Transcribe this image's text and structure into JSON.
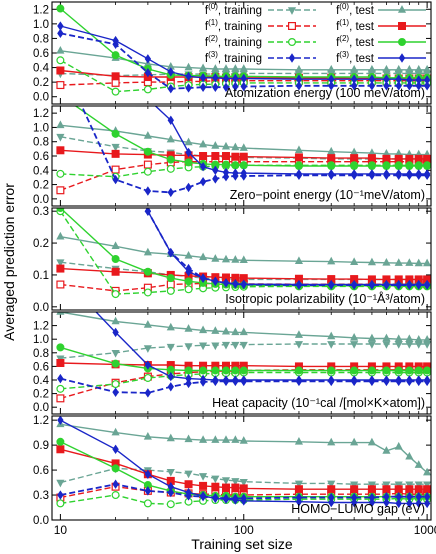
{
  "chart_data": {
    "type": "line",
    "xscale": "log",
    "xlim": [
      9,
      1050
    ],
    "x_ticks": [
      10,
      100,
      1000
    ],
    "x_tick_labels": [
      "10",
      "100",
      "1000"
    ],
    "xlabel": "Training set size",
    "ylabel": "Averaged prediction error",
    "x": [
      10,
      20,
      30,
      40,
      50,
      60,
      70,
      80,
      90,
      100,
      200,
      300,
      400,
      500,
      600,
      700,
      800,
      900,
      1000
    ],
    "series_styles": [
      {
        "name": "f(0), training",
        "name_base": "f",
        "name_sup": "(0)",
        "name_suffix": ", training",
        "color": "#6aa595",
        "dash": "6,3",
        "marker": "triangle-down"
      },
      {
        "name": "f(1), training",
        "name_base": "f",
        "name_sup": "(1)",
        "name_suffix": ", training",
        "color": "#e8191d",
        "dash": "6,3",
        "marker": "square-open"
      },
      {
        "name": "f(2), training",
        "name_base": "f",
        "name_sup": "(2)",
        "name_suffix": ", training",
        "color": "#2fd22f",
        "dash": "6,3",
        "marker": "circle-open"
      },
      {
        "name": "f(3), training",
        "name_base": "f",
        "name_sup": "(3)",
        "name_suffix": ", training",
        "color": "#1a26c8",
        "dash": "6,3",
        "marker": "diamond"
      },
      {
        "name": "f(0), test",
        "name_base": "f",
        "name_sup": "(0)",
        "name_suffix": ", test",
        "color": "#6aa595",
        "dash": "",
        "marker": "triangle-up"
      },
      {
        "name": "f(1), test",
        "name_base": "f",
        "name_sup": "(1)",
        "name_suffix": ", test",
        "color": "#e8191d",
        "dash": "",
        "marker": "square"
      },
      {
        "name": "f(2), test",
        "name_base": "f",
        "name_sup": "(2)",
        "name_suffix": ", test",
        "color": "#2fd22f",
        "dash": "",
        "marker": "circle"
      },
      {
        "name": "f(3), test",
        "name_base": "f",
        "name_sup": "(3)",
        "name_suffix": ", test",
        "color": "#1a26c8",
        "dash": "",
        "marker": "diamond"
      }
    ],
    "panels": [
      {
        "label": "Atomization energy (100 meV/atom)",
        "ylim": [
          -0.1,
          1.3
        ],
        "y_ticks": [
          0.0,
          0.2,
          0.4,
          0.6,
          0.8,
          1.0,
          1.2
        ],
        "y_tick_labels": [
          "0.0",
          "0.2",
          "0.4",
          "0.6",
          "0.8",
          "1.0",
          "1.2"
        ],
        "series": [
          [
            0.32,
            0.29,
            0.3,
            0.31,
            0.31,
            0.31,
            0.31,
            0.31,
            0.32,
            0.32,
            0.32,
            0.32,
            0.32,
            0.32,
            0.32,
            0.32,
            0.32,
            0.32,
            0.32
          ],
          [
            0.16,
            0.19,
            0.2,
            0.2,
            0.21,
            0.21,
            0.22,
            0.22,
            0.22,
            0.22,
            0.22,
            0.22,
            0.22,
            0.22,
            0.22,
            0.22,
            0.22,
            0.22,
            0.22
          ],
          [
            0.5,
            0.07,
            0.1,
            0.14,
            0.16,
            0.17,
            0.17,
            0.18,
            0.18,
            0.19,
            0.19,
            0.19,
            0.19,
            0.19,
            0.19,
            0.19,
            0.19,
            0.19,
            0.19
          ],
          [
            0.87,
            0.72,
            0.33,
            0.11,
            0.12,
            0.13,
            0.13,
            0.13,
            0.14,
            0.14,
            0.15,
            0.15,
            0.15,
            0.15,
            0.15,
            0.15,
            0.15,
            0.15,
            0.15
          ],
          [
            0.63,
            0.53,
            0.45,
            0.41,
            0.4,
            0.39,
            0.38,
            0.38,
            0.38,
            0.38,
            0.37,
            0.37,
            0.37,
            0.37,
            0.37,
            0.37,
            0.37,
            0.37,
            0.37
          ],
          [
            0.36,
            0.28,
            0.27,
            0.27,
            0.27,
            0.27,
            0.27,
            0.26,
            0.26,
            0.26,
            0.26,
            0.26,
            0.25,
            0.25,
            0.25,
            0.25,
            0.25,
            0.25,
            0.25
          ],
          [
            1.21,
            0.57,
            0.38,
            0.3,
            0.29,
            0.29,
            0.28,
            0.28,
            0.28,
            0.28,
            0.27,
            0.27,
            0.27,
            0.27,
            0.26,
            0.26,
            0.26,
            0.26,
            0.26
          ],
          [
            0.97,
            0.77,
            0.52,
            0.34,
            0.28,
            0.26,
            0.26,
            0.25,
            0.25,
            0.25,
            0.24,
            0.24,
            0.24,
            0.24,
            0.24,
            0.24,
            0.23,
            0.23,
            0.23
          ]
        ]
      },
      {
        "label": "Zero−point energy (10⁻¹meV/atom)",
        "ylim": [
          -0.1,
          1.3
        ],
        "y_ticks": [
          0.0,
          0.2,
          0.4,
          0.6,
          0.8,
          1.0,
          1.2
        ],
        "y_tick_labels": [
          "0.0",
          "0.2",
          "0.4",
          "0.6",
          "0.8",
          "1.0",
          "1.2"
        ],
        "series": [
          [
            0.87,
            0.73,
            0.67,
            0.65,
            0.62,
            0.6,
            0.59,
            0.59,
            0.58,
            0.58,
            0.57,
            0.56,
            0.56,
            0.56,
            0.56,
            0.56,
            0.56,
            0.56,
            0.56
          ],
          [
            0.12,
            0.41,
            0.48,
            0.51,
            0.52,
            0.52,
            0.52,
            0.52,
            0.52,
            0.52,
            0.52,
            0.52,
            0.52,
            0.52,
            0.52,
            0.52,
            0.52,
            0.52,
            0.52
          ],
          [
            0.35,
            0.31,
            0.38,
            0.42,
            0.44,
            0.45,
            0.46,
            0.46,
            0.47,
            0.47,
            0.47,
            0.47,
            0.47,
            0.47,
            0.47,
            0.47,
            0.47,
            0.47,
            0.47
          ],
          [
            1.95,
            0.27,
            0.11,
            0.09,
            0.16,
            0.24,
            0.28,
            0.31,
            0.32,
            0.32,
            0.33,
            0.33,
            0.33,
            0.33,
            0.33,
            0.33,
            0.33,
            0.33,
            0.33
          ],
          [
            1.03,
            0.95,
            0.88,
            0.83,
            0.79,
            0.76,
            0.74,
            0.73,
            0.72,
            0.71,
            0.68,
            0.66,
            0.65,
            0.64,
            0.63,
            0.63,
            0.62,
            0.62,
            0.62
          ],
          [
            0.68,
            0.63,
            0.62,
            0.61,
            0.61,
            0.6,
            0.6,
            0.6,
            0.59,
            0.59,
            0.58,
            0.57,
            0.57,
            0.57,
            0.56,
            0.56,
            0.56,
            0.56,
            0.56
          ],
          [
            1.45,
            0.91,
            0.66,
            0.55,
            0.51,
            0.49,
            0.48,
            0.48,
            0.47,
            0.47,
            0.46,
            0.46,
            0.46,
            0.46,
            0.46,
            0.46,
            0.46,
            0.46,
            0.46
          ],
          [
            2.6,
            1.8,
            1.4,
            1.1,
            0.65,
            0.45,
            0.4,
            0.37,
            0.36,
            0.36,
            0.35,
            0.35,
            0.35,
            0.35,
            0.35,
            0.35,
            0.35,
            0.35,
            0.35
          ]
        ]
      },
      {
        "label": "Isotropic polarizability (10⁻¹Å³/atom)",
        "ylim": [
          -0.01,
          0.31
        ],
        "y_ticks": [
          0.0,
          0.1,
          0.2,
          0.3
        ],
        "y_tick_labels": [
          "0.0",
          "0.1",
          "0.2",
          "0.3"
        ],
        "series": [
          [
            0.14,
            0.12,
            0.11,
            0.1,
            0.095,
            0.09,
            0.088,
            0.087,
            0.086,
            0.086,
            0.086,
            0.086,
            0.086,
            0.086,
            0.086,
            0.086,
            0.086,
            0.086,
            0.086
          ],
          [
            0.07,
            0.05,
            0.06,
            0.07,
            0.072,
            0.073,
            0.073,
            0.073,
            0.072,
            0.072,
            0.071,
            0.071,
            0.071,
            0.071,
            0.071,
            0.071,
            0.071,
            0.071,
            0.071
          ],
          [
            0.3,
            0.04,
            0.045,
            0.05,
            0.055,
            0.058,
            0.06,
            0.061,
            0.062,
            0.063,
            0.064,
            0.064,
            0.064,
            0.064,
            0.064,
            0.064,
            0.064,
            0.064,
            0.064
          ],
          [
            0.8,
            0.5,
            0.3,
            0.17,
            0.12,
            0.09,
            0.08,
            0.075,
            0.072,
            0.07,
            0.068,
            0.068,
            0.068,
            0.068,
            0.068,
            0.068,
            0.068,
            0.068,
            0.068
          ],
          [
            0.22,
            0.19,
            0.17,
            0.165,
            0.16,
            0.155,
            0.15,
            0.148,
            0.147,
            0.146,
            0.143,
            0.142,
            0.14,
            0.139,
            0.138,
            0.137,
            0.137,
            0.136,
            0.136
          ],
          [
            0.12,
            0.11,
            0.105,
            0.1,
            0.097,
            0.095,
            0.093,
            0.092,
            0.091,
            0.09,
            0.088,
            0.087,
            0.087,
            0.086,
            0.086,
            0.086,
            0.086,
            0.086,
            0.086
          ],
          [
            0.31,
            0.15,
            0.11,
            0.09,
            0.08,
            0.075,
            0.072,
            0.07,
            0.069,
            0.068,
            0.066,
            0.066,
            0.066,
            0.066,
            0.066,
            0.066,
            0.066,
            0.066,
            0.066
          ],
          [
            1.1,
            0.6,
            0.3,
            0.17,
            0.11,
            0.09,
            0.08,
            0.075,
            0.072,
            0.071,
            0.07,
            0.07,
            0.07,
            0.07,
            0.07,
            0.07,
            0.07,
            0.07,
            0.07
          ]
        ]
      },
      {
        "label": "Heat capacity (10⁻¹cal /[mol×K×atom])",
        "ylim": [
          -0.1,
          1.4
        ],
        "y_ticks": [
          0.0,
          0.2,
          0.4,
          0.6,
          0.8,
          1.0,
          1.2
        ],
        "y_tick_labels": [
          "0.0",
          "0.2",
          "0.4",
          "0.6",
          "0.8",
          "1.0",
          "1.2"
        ],
        "series": [
          [
            0.72,
            0.8,
            0.87,
            0.89,
            0.9,
            0.91,
            0.91,
            0.92,
            0.92,
            0.92,
            0.93,
            0.93,
            0.93,
            0.93,
            0.93,
            0.93,
            0.93,
            0.93,
            0.93
          ],
          [
            0.13,
            0.36,
            0.45,
            0.49,
            0.51,
            0.52,
            0.53,
            0.53,
            0.53,
            0.54,
            0.55,
            0.55,
            0.55,
            0.55,
            0.55,
            0.55,
            0.55,
            0.55,
            0.55
          ],
          [
            0.27,
            0.34,
            0.43,
            0.46,
            0.48,
            0.49,
            0.5,
            0.5,
            0.5,
            0.51,
            0.51,
            0.51,
            0.51,
            0.51,
            0.51,
            0.51,
            0.51,
            0.51,
            0.51
          ],
          [
            0.42,
            0.22,
            0.21,
            0.3,
            0.35,
            0.37,
            0.38,
            0.38,
            0.38,
            0.38,
            0.38,
            0.38,
            0.38,
            0.38,
            0.38,
            0.38,
            0.38,
            0.38,
            0.38
          ],
          [
            1.4,
            1.26,
            1.21,
            1.17,
            1.15,
            1.13,
            1.12,
            1.11,
            1.1,
            1.1,
            1.06,
            1.04,
            1.02,
            1.01,
            1.01,
            1.0,
            1.0,
            0.99,
            0.99
          ],
          [
            0.65,
            0.63,
            0.62,
            0.62,
            0.61,
            0.61,
            0.61,
            0.61,
            0.61,
            0.61,
            0.6,
            0.6,
            0.6,
            0.6,
            0.6,
            0.6,
            0.6,
            0.6,
            0.6
          ],
          [
            0.88,
            0.64,
            0.57,
            0.55,
            0.54,
            0.54,
            0.54,
            0.54,
            0.54,
            0.54,
            0.54,
            0.54,
            0.54,
            0.54,
            0.54,
            0.54,
            0.54,
            0.54,
            0.54
          ],
          [
            1.95,
            1.1,
            0.62,
            0.45,
            0.42,
            0.41,
            0.4,
            0.4,
            0.4,
            0.4,
            0.4,
            0.4,
            0.4,
            0.4,
            0.4,
            0.4,
            0.4,
            0.4,
            0.4
          ]
        ]
      },
      {
        "label": "HOMO−LUMO gap (eV)",
        "ylim": [
          0.0,
          1.25
        ],
        "y_ticks": [
          0.0,
          0.3,
          0.6,
          0.9,
          1.2
        ],
        "y_tick_labels": [
          "0.0",
          "0.3",
          "0.6",
          "0.9",
          "1.2"
        ],
        "series": [
          [
            0.45,
            0.62,
            0.6,
            0.58,
            0.56,
            0.53,
            0.5,
            0.48,
            0.47,
            0.46,
            0.44,
            0.44,
            0.43,
            0.43,
            0.43,
            0.43,
            0.43,
            0.43,
            0.43
          ],
          [
            0.27,
            0.4,
            0.35,
            0.33,
            0.32,
            0.31,
            0.31,
            0.3,
            0.3,
            0.3,
            0.31,
            0.31,
            0.31,
            0.31,
            0.31,
            0.32,
            0.31,
            0.31,
            0.31
          ],
          [
            0.2,
            0.3,
            0.2,
            0.19,
            0.22,
            0.23,
            0.24,
            0.24,
            0.24,
            0.24,
            0.25,
            0.25,
            0.25,
            0.25,
            0.25,
            0.26,
            0.25,
            0.26,
            0.25
          ],
          [
            0.3,
            0.43,
            0.35,
            0.33,
            0.29,
            0.28,
            0.27,
            0.26,
            0.26,
            0.26,
            0.27,
            0.27,
            0.27,
            0.27,
            0.28,
            0.28,
            0.28,
            0.28,
            0.28
          ],
          [
            1.15,
            1.05,
            1.0,
            0.98,
            0.97,
            0.96,
            0.96,
            0.96,
            0.96,
            0.95,
            0.94,
            0.93,
            0.93,
            0.93,
            0.83,
            0.88,
            0.76,
            0.66,
            0.57
          ],
          [
            0.85,
            0.68,
            0.55,
            0.47,
            0.43,
            0.41,
            0.4,
            0.39,
            0.39,
            0.38,
            0.37,
            0.37,
            0.37,
            0.37,
            0.37,
            0.37,
            0.37,
            0.37,
            0.37
          ],
          [
            0.94,
            0.62,
            0.42,
            0.35,
            0.31,
            0.3,
            0.29,
            0.29,
            0.28,
            0.28,
            0.28,
            0.28,
            0.28,
            0.28,
            0.28,
            0.28,
            0.28,
            0.28,
            0.28
          ],
          [
            1.2,
            0.85,
            0.55,
            0.4,
            0.33,
            0.29,
            0.26,
            0.25,
            0.24,
            0.23,
            0.22,
            0.21,
            0.21,
            0.21,
            0.21,
            0.2,
            0.2,
            0.2,
            0.2
          ]
        ]
      }
    ]
  }
}
